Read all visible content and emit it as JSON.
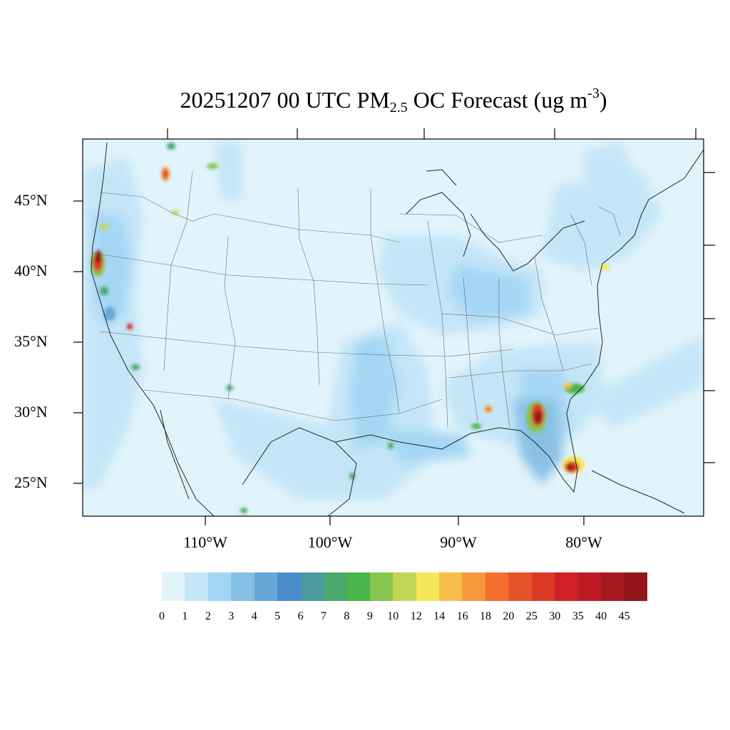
{
  "title": {
    "prefix": "20251207 00 UTC PM",
    "subscript": "2.5",
    "middle": " OC Forecast (ug m",
    "superscript": "-3",
    "suffix": ")"
  },
  "lat_labels": [
    "45°N",
    "40°N",
    "35°N",
    "30°N",
    "25°N"
  ],
  "lon_labels": [
    "110°W",
    "100°W",
    "90°W",
    "80°W"
  ],
  "colorbar": {
    "ticks": [
      "0",
      "1",
      "2",
      "3",
      "4",
      "5",
      "6",
      "7",
      "8",
      "9",
      "10",
      "12",
      "14",
      "16",
      "18",
      "20",
      "25",
      "30",
      "35",
      "40",
      "45"
    ],
    "colors": [
      "#e1f3fb",
      "#c2e5f7",
      "#a2d6f4",
      "#85bfe4",
      "#67a7d8",
      "#4a8ccc",
      "#4a9a9e",
      "#4aa86c",
      "#4ab54a",
      "#86c54e",
      "#c2d554",
      "#f7e55a",
      "#f7bd4a",
      "#f7983d",
      "#f46e2d",
      "#e65229",
      "#dc3a27",
      "#d11f28",
      "#bd1a24",
      "#a81820",
      "#921519"
    ]
  }
}
